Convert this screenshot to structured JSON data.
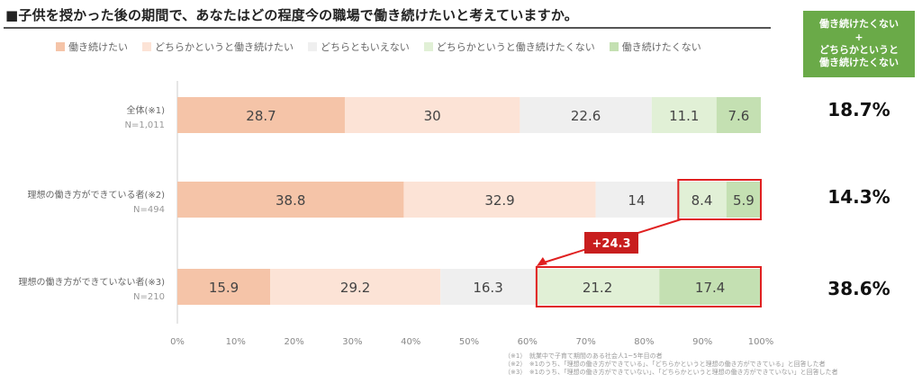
{
  "page_title": "■子供を授かった後の期間で、あなたはどの程度今の職場で働き続けたいと考えていますか。",
  "summary_header": [
    "働き続けたくない",
    "+",
    "どちらかというと",
    "働き続けたくない"
  ],
  "colors": {
    "s1": "#f5c4a8",
    "s2": "#fce3d6",
    "s3": "#efefef",
    "s4": "#e1f0d6",
    "s5": "#c4e0b2",
    "summary_bg": "#6aaa48",
    "highlight": "#e02020",
    "axis_text": "#888888"
  },
  "chart_data": {
    "type": "bar",
    "orientation": "horizontal",
    "stacked": true,
    "categories": [
      "全体(※1)",
      "理想の働き方ができている者(※2)",
      "理想の働き方ができていない者(※3)"
    ],
    "sample_sizes": [
      "N=1,011",
      "N=494",
      "N=210"
    ],
    "series": [
      {
        "name": "働き続けたい",
        "values": [
          28.7,
          38.8,
          15.9
        ]
      },
      {
        "name": "どちらかというと働き続けたい",
        "values": [
          30.0,
          32.9,
          29.2
        ]
      },
      {
        "name": "どちらともいえない",
        "values": [
          22.6,
          14.0,
          16.3
        ]
      },
      {
        "name": "どちらかというと働き続けたくない",
        "values": [
          11.1,
          8.4,
          21.2
        ]
      },
      {
        "name": "働き続けたくない",
        "values": [
          7.6,
          5.9,
          17.4
        ]
      }
    ],
    "summary_values": [
      "18.7%",
      "14.3%",
      "38.6%"
    ],
    "xlim": [
      0,
      100
    ],
    "xticks": [
      "0%",
      "10%",
      "20%",
      "30%",
      "40%",
      "50%",
      "60%",
      "70%",
      "80%",
      "90%",
      "100%"
    ],
    "annotation": "+24.3",
    "legend_position": "top",
    "grid": false
  },
  "footnotes": [
    "（※1）　就業中で子育て期間のある社会人1~5年目の者",
    "（※2）　※1のうち、「理想の働き方ができている」、「どちらかというと理想の働き方ができている」と回答した者",
    "（※3）　※1のうち、「理想の働き方ができていない」、「どちらかというと理想の働き方ができていない」と回答した者"
  ]
}
